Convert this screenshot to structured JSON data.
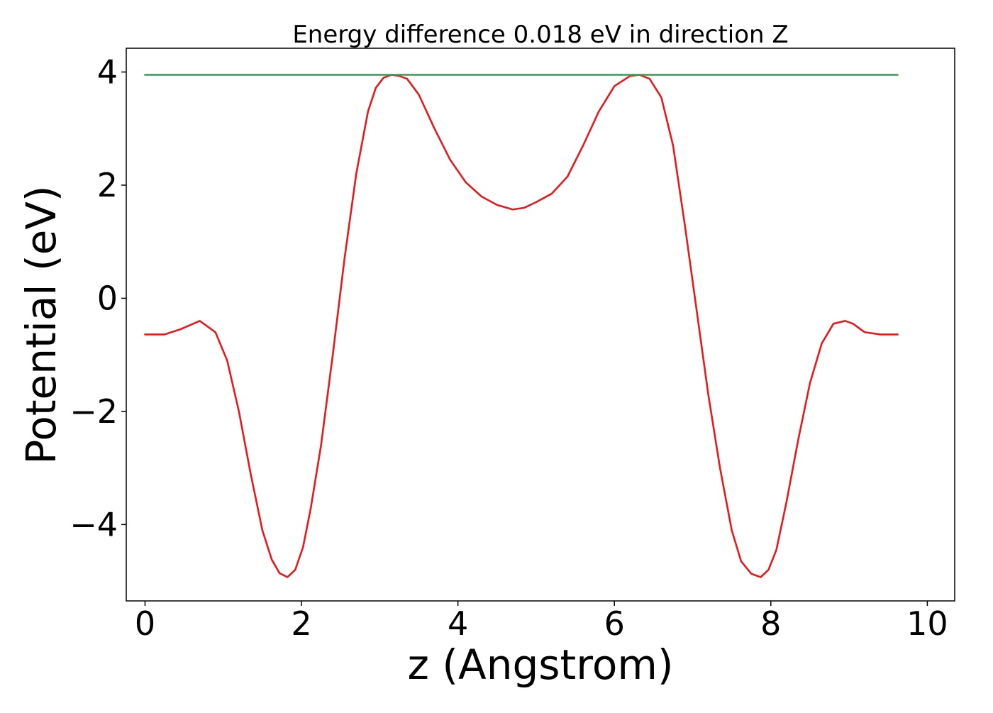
{
  "chart_data": {
    "type": "line",
    "title": "Energy difference 0.018 eV in direction Z",
    "xlabel": "z (Angstrom)",
    "ylabel": "Potential (eV)",
    "xlim": [
      -0.24,
      10.35
    ],
    "ylim": [
      -5.35,
      4.42
    ],
    "xticks": [
      0,
      2,
      4,
      6,
      8,
      10
    ],
    "xtick_labels": [
      "0",
      "2",
      "4",
      "6",
      "8",
      "10"
    ],
    "yticks": [
      -4,
      -2,
      0,
      2,
      4
    ],
    "ytick_labels": [
      "−4",
      "−2",
      "0",
      "2",
      "4"
    ],
    "grid": false,
    "series": [
      {
        "color": "#e41a1c",
        "x": [
          0.0,
          0.25,
          0.45,
          0.7,
          0.9,
          1.05,
          1.2,
          1.35,
          1.5,
          1.62,
          1.72,
          1.82,
          1.92,
          2.02,
          2.12,
          2.25,
          2.4,
          2.55,
          2.7,
          2.85,
          2.95,
          3.05,
          3.15,
          3.25,
          3.35,
          3.5,
          3.7,
          3.9,
          4.1,
          4.3,
          4.5,
          4.7,
          4.85,
          5.0,
          5.2,
          5.4,
          5.6,
          5.8,
          6.0,
          6.2,
          6.32,
          6.45,
          6.6,
          6.75,
          6.9,
          7.05,
          7.2,
          7.35,
          7.5,
          7.62,
          7.75,
          7.87,
          7.97,
          8.07,
          8.2,
          8.35,
          8.5,
          8.65,
          8.8,
          8.95,
          9.05,
          9.2,
          9.4,
          9.62
        ],
        "y": [
          -0.64,
          -0.64,
          -0.55,
          -0.4,
          -0.6,
          -1.1,
          -2.0,
          -3.1,
          -4.1,
          -4.62,
          -4.86,
          -4.93,
          -4.8,
          -4.4,
          -3.7,
          -2.6,
          -1.0,
          0.7,
          2.2,
          3.3,
          3.72,
          3.9,
          3.95,
          3.93,
          3.88,
          3.6,
          3.0,
          2.45,
          2.05,
          1.8,
          1.65,
          1.57,
          1.6,
          1.7,
          1.85,
          2.15,
          2.7,
          3.3,
          3.75,
          3.93,
          3.95,
          3.88,
          3.55,
          2.7,
          1.3,
          -0.2,
          -1.7,
          -3.0,
          -4.1,
          -4.65,
          -4.87,
          -4.93,
          -4.8,
          -4.45,
          -3.6,
          -2.5,
          -1.5,
          -0.8,
          -0.45,
          -0.4,
          -0.45,
          -0.6,
          -0.64,
          -0.64
        ]
      },
      {
        "color": "#3aa05a",
        "x": [
          0.0,
          9.62
        ],
        "y": [
          3.95,
          3.95
        ]
      }
    ]
  }
}
